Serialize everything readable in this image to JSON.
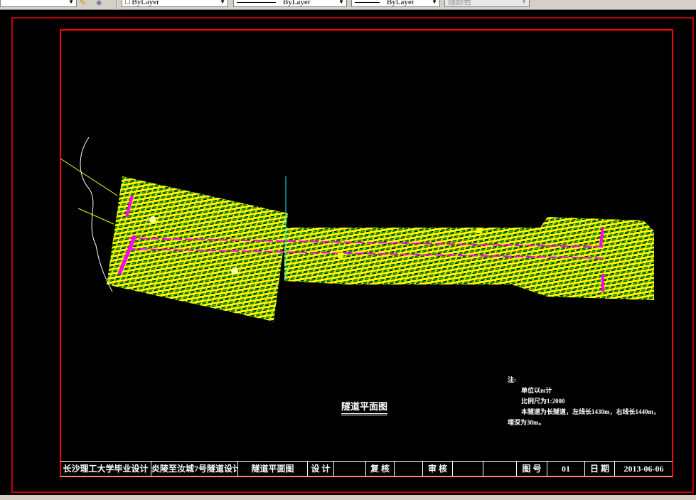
{
  "toolbar": {
    "color_select": "ByLayer",
    "linetype_select": "ByLayer",
    "lineweight_select": "ByLayer",
    "plotstyle_select": "随颜色"
  },
  "drawing": {
    "title": "隧道平面图",
    "notes": {
      "heading": "注:",
      "lines": [
        "单位以m计",
        "比例尺为1:2000",
        "本隧道为长隧道，左线长1430m，右线长1440m，",
        "埋深为30m。"
      ]
    },
    "title_block": [
      "长沙理工大学毕业设计",
      "炎陵至汝城7号隧道设计",
      "隧道平面图",
      "设 计",
      "",
      "复 核",
      "",
      "审 核",
      "",
      "",
      "图 号",
      "01",
      "日 期",
      "2013-06-06"
    ]
  },
  "colors": {
    "border": "#ff0000",
    "contour": "#ffff00",
    "contour_alt": "#00ff00",
    "tunnel": "#ff00ff",
    "axis": "#00ffff"
  }
}
